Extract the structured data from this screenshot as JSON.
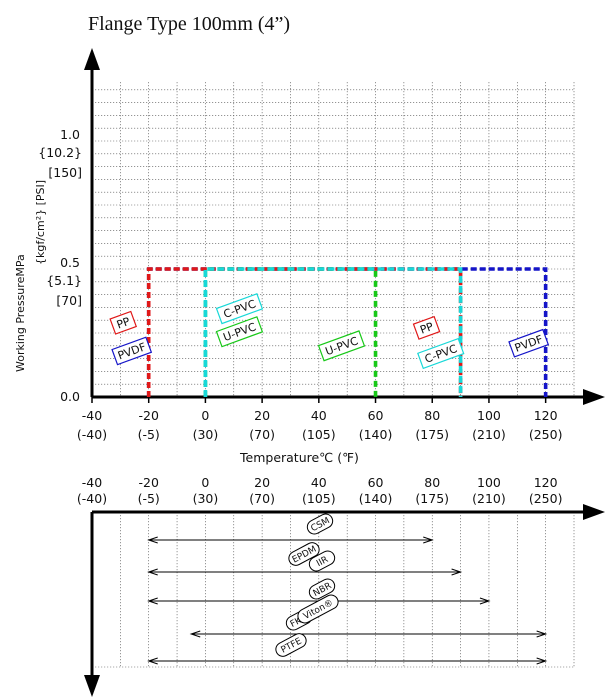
{
  "chart_data": [
    {
      "type": "line",
      "title": "Flange Type 100mm (4”)",
      "xlabel": "Temperature℃ (℉)",
      "ylabel": "Working PressureMPa",
      "ylabel_units": [
        "{kgf/cm²} [PSI]"
      ],
      "xlim": [
        -40,
        130
      ],
      "ylim": [
        0,
        1.25
      ],
      "x_ticks": [
        -40,
        -20,
        0,
        20,
        40,
        60,
        80,
        100,
        120
      ],
      "x_ticks_f": [
        "(-40)",
        "(-5)",
        "(30)",
        "(70)",
        "(105)",
        "(140)",
        "(175)",
        "(210)",
        "(250)"
      ],
      "y_ticks": [
        {
          "mpa": "0.0"
        },
        {
          "mpa": "0.5",
          "kgf": "{5.1}",
          "psi": "[70]"
        },
        {
          "mpa": "1.0",
          "kgf": "{10.2}",
          "psi": "[150]"
        }
      ],
      "series": [
        {
          "name": "PP",
          "color": "#e01818",
          "style": "dashed",
          "points": [
            [
              -20,
              0
            ],
            [
              -20,
              0.5
            ],
            [
              90,
              0.5
            ],
            [
              90,
              0
            ]
          ]
        },
        {
          "name": "PVDF",
          "color": "#1515c8",
          "style": "dashed",
          "points": [
            [
              -20,
              0
            ],
            [
              -20,
              0.5
            ],
            [
              120,
              0.5
            ],
            [
              120,
              0
            ]
          ]
        },
        {
          "name": "C-PVC",
          "color": "#18d8d8",
          "style": "dashed",
          "points": [
            [
              0,
              0
            ],
            [
              0,
              0.5
            ],
            [
              90,
              0.5
            ],
            [
              90,
              0
            ]
          ]
        },
        {
          "name": "U-PVC",
          "color": "#18c818",
          "style": "dashed",
          "points": [
            [
              0,
              0
            ],
            [
              0,
              0.5
            ],
            [
              60,
              0.5
            ],
            [
              60,
              0
            ]
          ]
        }
      ],
      "labels": [
        {
          "text": "PP",
          "color": "#e01818",
          "x": -29,
          "y": 0.29
        },
        {
          "text": "PVDF",
          "color": "#1515c8",
          "x": -26,
          "y": 0.18
        },
        {
          "text": "C-PVC",
          "color": "#18d8d8",
          "x": 12,
          "y": 0.345
        },
        {
          "text": "U-PVC",
          "color": "#18c818",
          "x": 12,
          "y": 0.255
        },
        {
          "text": "U-PVC",
          "color": "#18c818",
          "x": 48,
          "y": 0.2
        },
        {
          "text": "PP",
          "color": "#e01818",
          "x": 78,
          "y": 0.27
        },
        {
          "text": "C-PVC",
          "color": "#18d8d8",
          "x": 83,
          "y": 0.17
        },
        {
          "text": "PVDF",
          "color": "#1515c8",
          "x": 114,
          "y": 0.21
        }
      ]
    },
    {
      "type": "bar",
      "title": "",
      "xlim": [
        -40,
        130
      ],
      "x_ticks": [
        -40,
        -20,
        0,
        20,
        40,
        60,
        80,
        100,
        120
      ],
      "x_ticks_f": [
        "(-40)",
        "(-5)",
        "(30)",
        "(70)",
        "(105)",
        "(140)",
        "(175)",
        "(210)",
        "(250)"
      ],
      "series": [
        {
          "name": "CSM",
          "start": -20,
          "end": 80
        },
        {
          "name": "EPDM",
          "start": -20,
          "end": 90
        },
        {
          "name": "IIR",
          "start": -20,
          "end": 90
        },
        {
          "name": "NBR",
          "start": -20,
          "end": 100
        },
        {
          "name": "FKM",
          "start": -5,
          "end": 120
        },
        {
          "name": "Viton®",
          "start": -5,
          "end": 120
        },
        {
          "name": "PTFE",
          "start": -20,
          "end": 120
        }
      ]
    }
  ]
}
